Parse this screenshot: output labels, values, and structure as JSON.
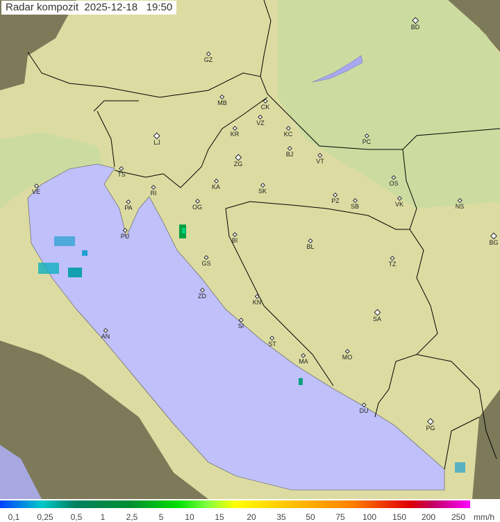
{
  "title": {
    "label": "Radar kompozit",
    "date": "2025-12-18",
    "time": "19:50"
  },
  "colors": {
    "sea": "#c0c0fa",
    "land": "#dcdca0",
    "outside_coverage": "#7d7a5a",
    "border": "#000000"
  },
  "cities": [
    {
      "code": "GZ",
      "major": false
    },
    {
      "code": "BD",
      "major": true
    },
    {
      "code": "MB",
      "major": false
    },
    {
      "code": "CK",
      "major": false
    },
    {
      "code": "VZ",
      "major": false
    },
    {
      "code": "KR",
      "major": false
    },
    {
      "code": "KC",
      "major": false
    },
    {
      "code": "LJ",
      "major": true
    },
    {
      "code": "PC",
      "major": false
    },
    {
      "code": "TS",
      "major": false
    },
    {
      "code": "ZG",
      "major": true
    },
    {
      "code": "BJ",
      "major": false
    },
    {
      "code": "VT",
      "major": false
    },
    {
      "code": "VE",
      "major": false
    },
    {
      "code": "RI",
      "major": false
    },
    {
      "code": "KA",
      "major": false
    },
    {
      "code": "SK",
      "major": false
    },
    {
      "code": "OS",
      "major": false
    },
    {
      "code": "PA",
      "major": false
    },
    {
      "code": "OG",
      "major": false
    },
    {
      "code": "PZ",
      "major": false
    },
    {
      "code": "SB",
      "major": false
    },
    {
      "code": "VK",
      "major": false
    },
    {
      "code": "NS",
      "major": false
    },
    {
      "code": "PU",
      "major": false
    },
    {
      "code": "BI",
      "major": false
    },
    {
      "code": "BL",
      "major": false
    },
    {
      "code": "BG",
      "major": true
    },
    {
      "code": "TZ",
      "major": false
    },
    {
      "code": "GS",
      "major": false
    },
    {
      "code": "ZD",
      "major": false
    },
    {
      "code": "KN",
      "major": false
    },
    {
      "code": "SA",
      "major": true
    },
    {
      "code": "SI",
      "major": false
    },
    {
      "code": "AN",
      "major": false
    },
    {
      "code": "ST",
      "major": false
    },
    {
      "code": "MA",
      "major": false
    },
    {
      "code": "MO",
      "major": false
    },
    {
      "code": "DU",
      "major": false
    },
    {
      "code": "PG",
      "major": true
    }
  ],
  "legend": {
    "ticks": [
      "0,1",
      "0,25",
      "0,5",
      "1",
      "2,5",
      "5",
      "10",
      "15",
      "20",
      "35",
      "50",
      "75",
      "100",
      "150",
      "200",
      "250"
    ],
    "unit": "mm/h"
  }
}
